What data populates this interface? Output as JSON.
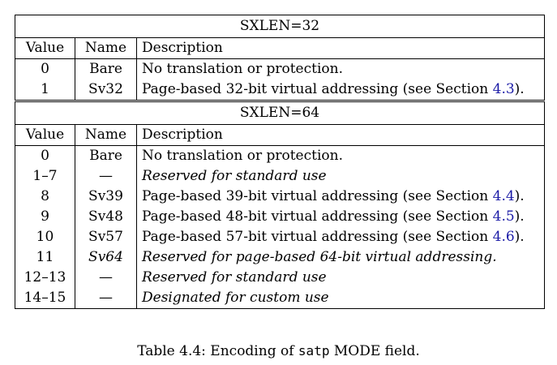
{
  "table32": {
    "title": "SXLEN=32",
    "headers": [
      "Value",
      "Name",
      "Description"
    ],
    "rows": [
      {
        "value": "0",
        "name": "Bare",
        "desc": "No translation or protection.",
        "italic": false
      },
      {
        "value": "1",
        "name": "Sv32",
        "desc_pre": "Page-based 32-bit virtual addressing (see Section ",
        "ref": "4.3",
        "desc_post": ").",
        "italic": false
      }
    ]
  },
  "table64": {
    "title": "SXLEN=64",
    "headers": [
      "Value",
      "Name",
      "Description"
    ],
    "rows": [
      {
        "value": "0",
        "name": "Bare",
        "desc": "No translation or protection."
      },
      {
        "value": "1–7",
        "name": "—",
        "desc": "Reserved for standard use"
      },
      {
        "value": "8",
        "name": "Sv39",
        "desc_pre": "Page-based 39-bit virtual addressing (see Section ",
        "ref": "4.4",
        "desc_post": ")."
      },
      {
        "value": "9",
        "name": "Sv48",
        "desc_pre": "Page-based 48-bit virtual addressing (see Section ",
        "ref": "4.5",
        "desc_post": ")."
      },
      {
        "value": "10",
        "name": "Sv57",
        "desc_pre": "Page-based 57-bit virtual addressing (see Section ",
        "ref": "4.6",
        "desc_post": ")."
      },
      {
        "value": "11",
        "name": "Sv64",
        "desc": "Reserved for page-based 64-bit virtual addressing."
      },
      {
        "value": "12–13",
        "name": "—",
        "desc": "Reserved for standard use"
      },
      {
        "value": "14–15",
        "name": "—",
        "desc": "Designated for custom use"
      }
    ]
  },
  "caption": {
    "prefix": "Table 4.4: Encoding of ",
    "code": "satp",
    "suffix": " MODE field."
  }
}
